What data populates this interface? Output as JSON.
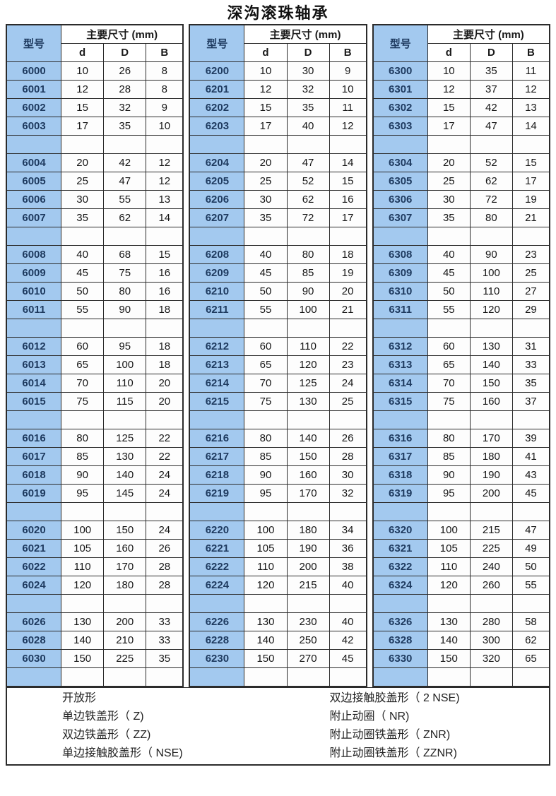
{
  "title": "深沟滚珠轴承",
  "colors": {
    "header_cell_blue": "#a3c9ef",
    "model_text_navy": "#1e3a5f",
    "grid_border": "#2b2b2b",
    "background": "#ffffff"
  },
  "table": {
    "model_header": "型号",
    "dims_header": "主要尺寸 (mm)",
    "col_headers": [
      "d",
      "D",
      "B"
    ],
    "groups": [
      {
        "series": "6000",
        "rows": [
          [
            "6000",
            "10",
            "26",
            "8"
          ],
          [
            "6001",
            "12",
            "28",
            "8"
          ],
          [
            "6002",
            "15",
            "32",
            "9"
          ],
          [
            "6003",
            "17",
            "35",
            "10"
          ],
          null,
          [
            "6004",
            "20",
            "42",
            "12"
          ],
          [
            "6005",
            "25",
            "47",
            "12"
          ],
          [
            "6006",
            "30",
            "55",
            "13"
          ],
          [
            "6007",
            "35",
            "62",
            "14"
          ],
          null,
          [
            "6008",
            "40",
            "68",
            "15"
          ],
          [
            "6009",
            "45",
            "75",
            "16"
          ],
          [
            "6010",
            "50",
            "80",
            "16"
          ],
          [
            "6011",
            "55",
            "90",
            "18"
          ],
          null,
          [
            "6012",
            "60",
            "95",
            "18"
          ],
          [
            "6013",
            "65",
            "100",
            "18"
          ],
          [
            "6014",
            "70",
            "110",
            "20"
          ],
          [
            "6015",
            "75",
            "115",
            "20"
          ],
          null,
          [
            "6016",
            "80",
            "125",
            "22"
          ],
          [
            "6017",
            "85",
            "130",
            "22"
          ],
          [
            "6018",
            "90",
            "140",
            "24"
          ],
          [
            "6019",
            "95",
            "145",
            "24"
          ],
          null,
          [
            "6020",
            "100",
            "150",
            "24"
          ],
          [
            "6021",
            "105",
            "160",
            "26"
          ],
          [
            "6022",
            "110",
            "170",
            "28"
          ],
          [
            "6024",
            "120",
            "180",
            "28"
          ],
          null,
          [
            "6026",
            "130",
            "200",
            "33"
          ],
          [
            "6028",
            "140",
            "210",
            "33"
          ],
          [
            "6030",
            "150",
            "225",
            "35"
          ],
          null
        ]
      },
      {
        "series": "6200",
        "rows": [
          [
            "6200",
            "10",
            "30",
            "9"
          ],
          [
            "6201",
            "12",
            "32",
            "10"
          ],
          [
            "6202",
            "15",
            "35",
            "11"
          ],
          [
            "6203",
            "17",
            "40",
            "12"
          ],
          null,
          [
            "6204",
            "20",
            "47",
            "14"
          ],
          [
            "6205",
            "25",
            "52",
            "15"
          ],
          [
            "6206",
            "30",
            "62",
            "16"
          ],
          [
            "6207",
            "35",
            "72",
            "17"
          ],
          null,
          [
            "6208",
            "40",
            "80",
            "18"
          ],
          [
            "6209",
            "45",
            "85",
            "19"
          ],
          [
            "6210",
            "50",
            "90",
            "20"
          ],
          [
            "6211",
            "55",
            "100",
            "21"
          ],
          null,
          [
            "6212",
            "60",
            "110",
            "22"
          ],
          [
            "6213",
            "65",
            "120",
            "23"
          ],
          [
            "6214",
            "70",
            "125",
            "24"
          ],
          [
            "6215",
            "75",
            "130",
            "25"
          ],
          null,
          [
            "6216",
            "80",
            "140",
            "26"
          ],
          [
            "6217",
            "85",
            "150",
            "28"
          ],
          [
            "6218",
            "90",
            "160",
            "30"
          ],
          [
            "6219",
            "95",
            "170",
            "32"
          ],
          null,
          [
            "6220",
            "100",
            "180",
            "34"
          ],
          [
            "6221",
            "105",
            "190",
            "36"
          ],
          [
            "6222",
            "110",
            "200",
            "38"
          ],
          [
            "6224",
            "120",
            "215",
            "40"
          ],
          null,
          [
            "6226",
            "130",
            "230",
            "40"
          ],
          [
            "6228",
            "140",
            "250",
            "42"
          ],
          [
            "6230",
            "150",
            "270",
            "45"
          ],
          null
        ]
      },
      {
        "series": "6300",
        "rows": [
          [
            "6300",
            "10",
            "35",
            "11"
          ],
          [
            "6301",
            "12",
            "37",
            "12"
          ],
          [
            "6302",
            "15",
            "42",
            "13"
          ],
          [
            "6303",
            "17",
            "47",
            "14"
          ],
          null,
          [
            "6304",
            "20",
            "52",
            "15"
          ],
          [
            "6305",
            "25",
            "62",
            "17"
          ],
          [
            "6306",
            "30",
            "72",
            "19"
          ],
          [
            "6307",
            "35",
            "80",
            "21"
          ],
          null,
          [
            "6308",
            "40",
            "90",
            "23"
          ],
          [
            "6309",
            "45",
            "100",
            "25"
          ],
          [
            "6310",
            "50",
            "110",
            "27"
          ],
          [
            "6311",
            "55",
            "120",
            "29"
          ],
          null,
          [
            "6312",
            "60",
            "130",
            "31"
          ],
          [
            "6313",
            "65",
            "140",
            "33"
          ],
          [
            "6314",
            "70",
            "150",
            "35"
          ],
          [
            "6315",
            "75",
            "160",
            "37"
          ],
          null,
          [
            "6316",
            "80",
            "170",
            "39"
          ],
          [
            "6317",
            "85",
            "180",
            "41"
          ],
          [
            "6318",
            "90",
            "190",
            "43"
          ],
          [
            "6319",
            "95",
            "200",
            "45"
          ],
          null,
          [
            "6320",
            "100",
            "215",
            "47"
          ],
          [
            "6321",
            "105",
            "225",
            "49"
          ],
          [
            "6322",
            "110",
            "240",
            "50"
          ],
          [
            "6324",
            "120",
            "260",
            "55"
          ],
          null,
          [
            "6326",
            "130",
            "280",
            "58"
          ],
          [
            "6328",
            "140",
            "300",
            "62"
          ],
          [
            "6330",
            "150",
            "320",
            "65"
          ],
          null
        ]
      }
    ]
  },
  "footer": {
    "left_items": [
      "开放形",
      "单边铁盖形（ Z)",
      "双边铁盖形（ ZZ)",
      "单边接触胶盖形（ NSE)"
    ],
    "right_items": [
      "双边接触胶盖形（ 2 NSE)",
      "附止动圈（ NR)",
      "附止动圈铁盖形（ ZNR)",
      "附止动圈铁盖形（ ZZNR)"
    ]
  }
}
